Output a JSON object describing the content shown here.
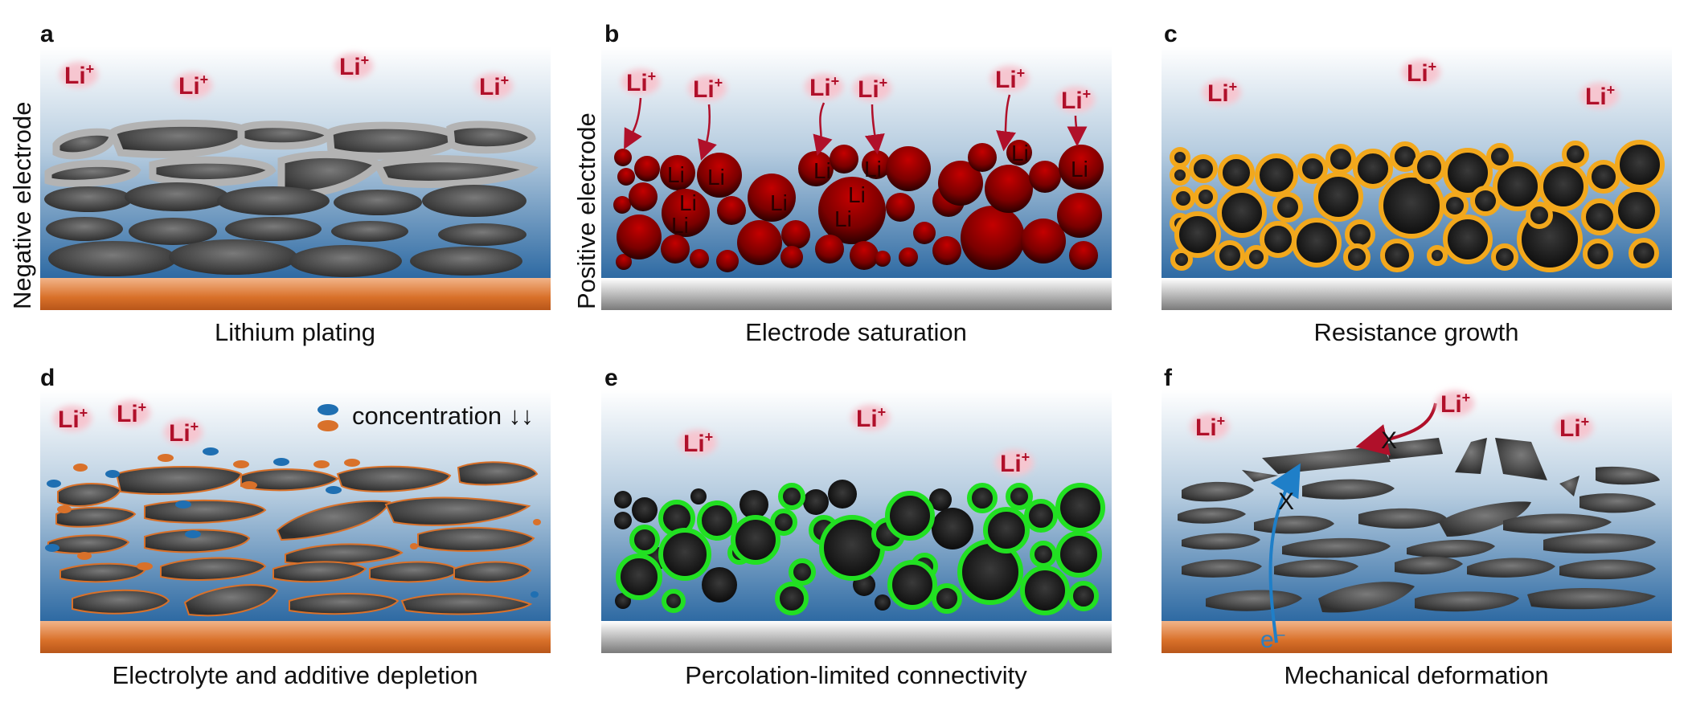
{
  "figure": {
    "y_labels": {
      "negative": "Negative electrode",
      "positive": "Positive electrode"
    },
    "li_ion_text": "Li",
    "li_ion_charge": "+",
    "li_atom_text": "Li",
    "electron_text": "e⁻",
    "blocked_mark": "X",
    "legend": {
      "text": "concentration ↓↓",
      "colors": [
        "#1f6fb2",
        "#d9712a"
      ]
    },
    "panels": [
      {
        "letter": "a",
        "caption": "Lithium plating"
      },
      {
        "letter": "b",
        "caption": "Electrode saturation"
      },
      {
        "letter": "c",
        "caption": "Resistance growth"
      },
      {
        "letter": "d",
        "caption": "Electrolyte and additive depletion"
      },
      {
        "letter": "e",
        "caption": "Percolation-limited connectivity"
      },
      {
        "letter": "f",
        "caption": "Mechanical deformation"
      }
    ],
    "colors": {
      "electrolyte_top": "#ffffff",
      "electrolyte_bottom": "#2e6aa3",
      "copper": "#d9712a",
      "aluminum": "#9a9a9a",
      "graphite": "#3a3a3a",
      "plating": "#b5b5b5",
      "cathode_saturated": "#a00000",
      "sei": "#f2a81d",
      "percolation": "#22e022",
      "additive": "#d9712a",
      "electrolyte_species": "#1f6fb2",
      "li_ion": "#b0102a",
      "electron_path": "#1f7fc8"
    }
  }
}
